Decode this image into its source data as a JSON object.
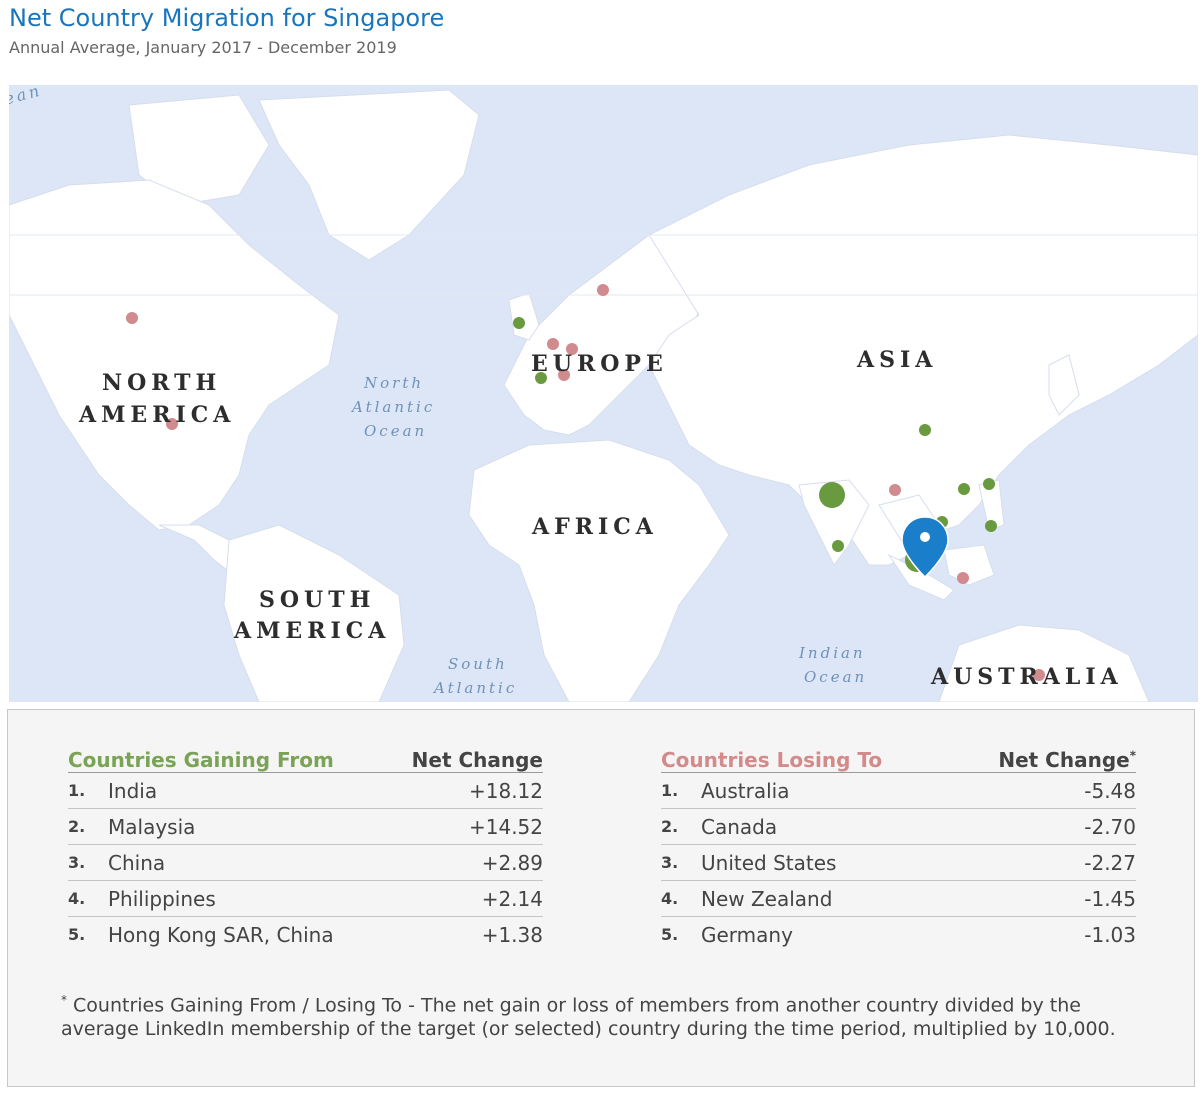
{
  "header": {
    "title": "Net Country Migration for Singapore",
    "subtitle": "Annual Average, January 2017 - December 2019"
  },
  "map": {
    "continent_labels": {
      "north_america_1": "NORTH",
      "north_america_2": "AMERICA",
      "south_america_1": "SOUTH",
      "south_america_2": "AMERICA",
      "europe": "EUROPE",
      "africa": "AFRICA",
      "asia": "ASIA",
      "australia": "AUSTRALIA"
    },
    "ocean_labels": {
      "north_atlantic_1": "North",
      "north_atlantic_2": "Atlantic",
      "north_atlantic_3": "Ocean",
      "south_atlantic_1": "South",
      "south_atlantic_2": "Atlantic",
      "indian_1": "Indian",
      "indian_2": "Ocean",
      "corner": "ean"
    },
    "colors": {
      "water": "#dde6f7",
      "land": "#ffffff",
      "gain": "#6a9a3f",
      "loss": "#d18a8e",
      "marker": "#1b7ecb"
    }
  },
  "gaining": {
    "header": "Countries Gaining From",
    "net_change_header": "Net Change",
    "rows": [
      {
        "rank": "1.",
        "country": "India",
        "value": "+18.12"
      },
      {
        "rank": "2.",
        "country": "Malaysia",
        "value": "+14.52"
      },
      {
        "rank": "3.",
        "country": "China",
        "value": "+2.89"
      },
      {
        "rank": "4.",
        "country": "Philippines",
        "value": "+2.14"
      },
      {
        "rank": "5.",
        "country": "Hong Kong SAR, China",
        "value": "+1.38"
      }
    ]
  },
  "losing": {
    "header": "Countries Losing To",
    "net_change_header": "Net Change",
    "asterisk": "*",
    "rows": [
      {
        "rank": "1.",
        "country": "Australia",
        "value": "-5.48"
      },
      {
        "rank": "2.",
        "country": "Canada",
        "value": "-2.70"
      },
      {
        "rank": "3.",
        "country": "United States",
        "value": "-2.27"
      },
      {
        "rank": "4.",
        "country": "New Zealand",
        "value": "-1.45"
      },
      {
        "rank": "5.",
        "country": "Germany",
        "value": "-1.03"
      }
    ]
  },
  "footnote": {
    "asterisk": "*",
    "text": " Countries Gaining From / Losing To - The net gain or loss of members from another country divided by the average LinkedIn membership of the target (or selected) country during the time period, multiplied by 10,000."
  }
}
